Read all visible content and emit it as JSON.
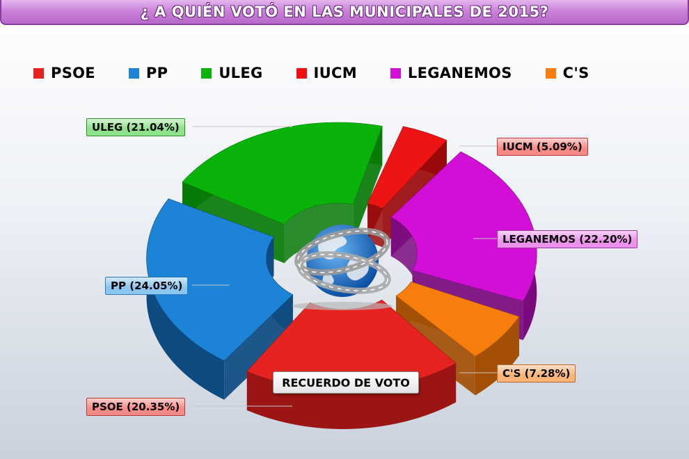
{
  "title": "¿ A QUIÉN VOTÓ EN LAS MUNICIPALES DE 2015?",
  "center_label": "RECUERDO DE VOTO",
  "chart_data": {
    "type": "pie",
    "title": "¿ A QUIÉN VOTÓ EN LAS MUNICIPALES DE 2015?",
    "legend_position": "top",
    "legend": [
      {
        "name": "PSOE",
        "color": "#e52421"
      },
      {
        "name": "PP",
        "color": "#1c83d6"
      },
      {
        "name": "ULEG",
        "color": "#0ab30a"
      },
      {
        "name": "IUCM",
        "color": "#f01010"
      },
      {
        "name": "LEGANEMOS",
        "color": "#d10fd6"
      },
      {
        "name": "C'S",
        "color": "#f77e0c"
      }
    ],
    "slices": [
      {
        "name": "ULEG",
        "value": 21.04,
        "label": "ULEG (21.04%)",
        "color": "#0ab30a",
        "side": "#087a08",
        "label_bg": "#8ee28a",
        "label_border": "#2f8a2c"
      },
      {
        "name": "IUCM",
        "value": 5.09,
        "label": "IUCM (5.09%)",
        "color": "#ee1414",
        "side": "#9a0a0a",
        "label_bg": "#f58a86",
        "label_border": "#b33a36"
      },
      {
        "name": "LEGANEMOS",
        "value": 22.2,
        "label": "LEGANEMOS (22.20%)",
        "color": "#d10fd6",
        "side": "#7a0a7e",
        "label_bg": "#ec92ec",
        "label_border": "#9d3aa0"
      },
      {
        "name": "C'S",
        "value": 7.28,
        "label": "C'S (7.28%)",
        "color": "#f77e0c",
        "side": "#a34f05",
        "label_bg": "#f9b47a",
        "label_border": "#b86a2c"
      },
      {
        "name": "PSOE",
        "value": 20.35,
        "label": "PSOE (20.35%)",
        "color": "#e52421",
        "side": "#9a1513",
        "label_bg": "#f58a86",
        "label_border": "#b33a36"
      },
      {
        "name": "PP",
        "value": 24.05,
        "label": "PP (24.05%)",
        "color": "#1c83d6",
        "side": "#0d4a80",
        "label_bg": "#8cc6f0",
        "label_border": "#2f78b3"
      }
    ]
  }
}
